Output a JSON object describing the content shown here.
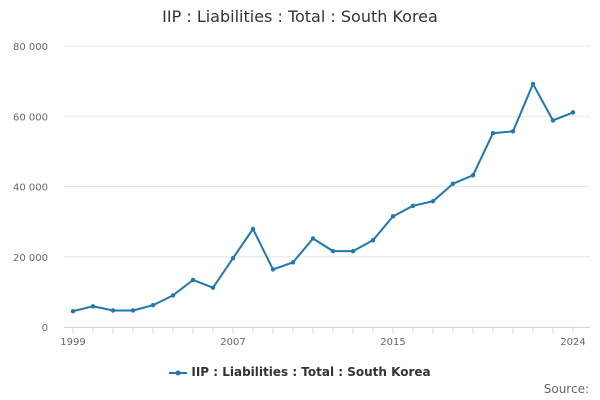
{
  "chart_data": {
    "type": "line",
    "title": "IIP : Liabilities : Total : South Korea",
    "xlabel": "",
    "ylabel": "",
    "x": [
      1999,
      2000,
      2001,
      2002,
      2003,
      2004,
      2005,
      2006,
      2007,
      2008,
      2009,
      2010,
      2011,
      2012,
      2013,
      2014,
      2015,
      2016,
      2017,
      2018,
      2019,
      2020,
      2021,
      2022,
      2023,
      2024
    ],
    "series": [
      {
        "name": "IIP : Liabilities : Total : South Korea",
        "color": "#1f77b4",
        "values": [
          4500,
          5900,
          4700,
          4700,
          6200,
          9000,
          13400,
          11200,
          19600,
          27900,
          16400,
          18400,
          25200,
          21600,
          21600,
          24700,
          31500,
          34500,
          35800,
          40800,
          43200,
          55200,
          55700,
          69200,
          58800,
          61100
        ]
      }
    ],
    "xlim": [
      1999,
      2024
    ],
    "ylim": [
      0,
      80000
    ],
    "yticks": [
      0,
      20000,
      40000,
      60000,
      80000
    ],
    "ytick_labels": [
      "0",
      "20 000",
      "40 000",
      "60 000",
      "80 000"
    ],
    "xticks": [
      1999,
      2007,
      2015,
      2024
    ],
    "xtick_labels": [
      "1999",
      "2007",
      "2015",
      "2024"
    ],
    "grid": "horizontal",
    "legend_position": "bottom-center"
  },
  "source_label": "Source:"
}
